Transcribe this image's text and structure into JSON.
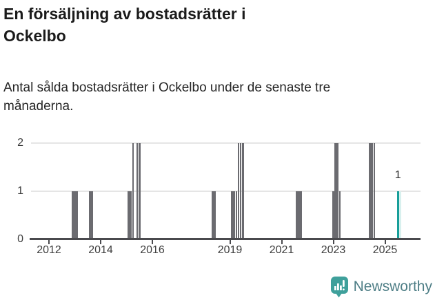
{
  "header": {
    "title_line1": "En försäljning av bostadsrätter i",
    "title_line2": "Ockelbo",
    "subtitle": "Antal sålda bostadsrätter i Ockelbo under de senaste tre månaderna."
  },
  "footer": {
    "brand": "Newsworthy",
    "logo_icon": "newsworthy-speech-bubble-chart-icon"
  },
  "colors": {
    "bar": "#6B6B70",
    "highlight": "#179E99",
    "gridline": "#E5E5E5",
    "axis": "#4A4A4E",
    "logo_icon": "#3FA09B",
    "logo_text": "#4E7E86"
  },
  "chart_data": {
    "type": "bar",
    "title": "En försäljning av bostadsrätter i Ockelbo",
    "subtitle": "Antal sålda bostadsrätter i Ockelbo under de senaste tre månaderna.",
    "xlabel": "",
    "ylabel": "",
    "ylim": [
      0,
      2.2
    ],
    "yticks": [
      0,
      1,
      2
    ],
    "xticks": [
      2012,
      2014,
      2016,
      2019,
      2021,
      2023,
      2025
    ],
    "grid": "horizontal",
    "legend": "none",
    "series": [
      {
        "points": [
          {
            "month": "2012-12",
            "value": 1
          },
          {
            "month": "2013-01",
            "value": 1
          },
          {
            "month": "2013-02",
            "value": 1
          },
          {
            "month": "2013-08",
            "value": 1
          },
          {
            "month": "2013-09",
            "value": 1
          },
          {
            "month": "2015-02",
            "value": 1
          },
          {
            "month": "2015-03",
            "value": 1
          },
          {
            "month": "2015-04",
            "value": 2
          },
          {
            "month": "2015-06",
            "value": 2
          },
          {
            "month": "2015-07",
            "value": 2
          },
          {
            "month": "2018-05",
            "value": 1
          },
          {
            "month": "2018-06",
            "value": 1
          },
          {
            "month": "2019-02",
            "value": 1
          },
          {
            "month": "2019-03",
            "value": 1
          },
          {
            "month": "2019-04",
            "value": 1
          },
          {
            "month": "2019-05",
            "value": 2
          },
          {
            "month": "2019-06",
            "value": 2
          },
          {
            "month": "2019-07",
            "value": 2
          },
          {
            "month": "2021-08",
            "value": 1
          },
          {
            "month": "2021-09",
            "value": 1
          },
          {
            "month": "2021-10",
            "value": 1
          },
          {
            "month": "2023-01",
            "value": 1
          },
          {
            "month": "2023-02",
            "value": 2
          },
          {
            "month": "2023-03",
            "value": 2
          },
          {
            "month": "2023-04",
            "value": 1
          },
          {
            "month": "2024-06",
            "value": 2
          },
          {
            "month": "2024-07",
            "value": 2
          },
          {
            "month": "2024-08",
            "value": 2
          }
        ]
      }
    ],
    "highlight_point": {
      "month": "2025-07",
      "value": 1,
      "label": "1"
    }
  }
}
